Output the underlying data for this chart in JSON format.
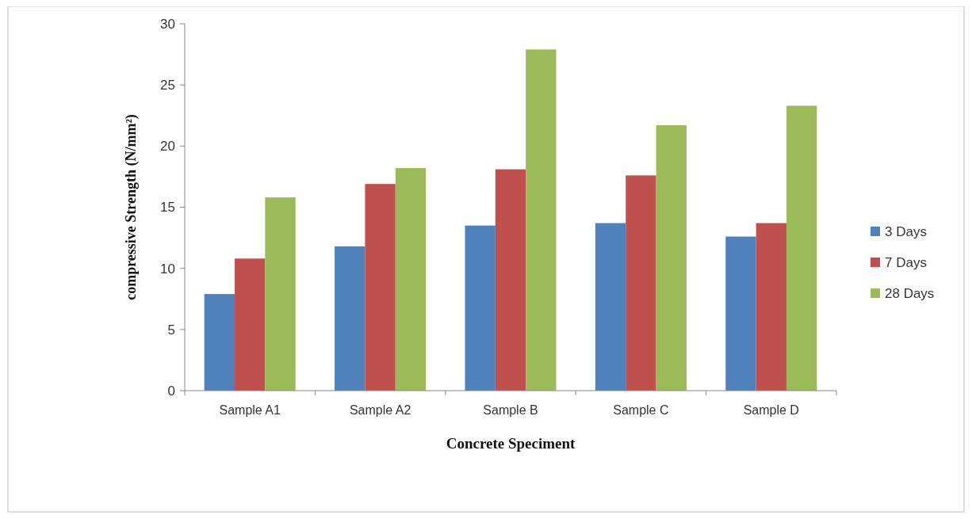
{
  "chart_data": {
    "type": "bar",
    "xlabel": "Concrete Speciment",
    "ylabel": "compressive Strength (N/mm²)",
    "categories": [
      "Sample A1",
      "Sample A2",
      "Sample B",
      "Sample C",
      "Sample D"
    ],
    "series": [
      {
        "name": "3 Days",
        "color": "#4f81bd",
        "values": [
          7.9,
          11.8,
          13.5,
          13.7,
          12.6
        ]
      },
      {
        "name": "7 Days",
        "color": "#c0504d",
        "values": [
          10.8,
          16.9,
          18.1,
          17.6,
          13.7
        ]
      },
      {
        "name": "28 Days",
        "color": "#9bbb59",
        "values": [
          15.8,
          18.2,
          27.9,
          21.7,
          23.3
        ]
      }
    ],
    "ylim": [
      0,
      30
    ],
    "yticks": [
      0,
      5,
      10,
      15,
      20,
      25,
      30
    ],
    "grid": false,
    "legend": "right"
  }
}
